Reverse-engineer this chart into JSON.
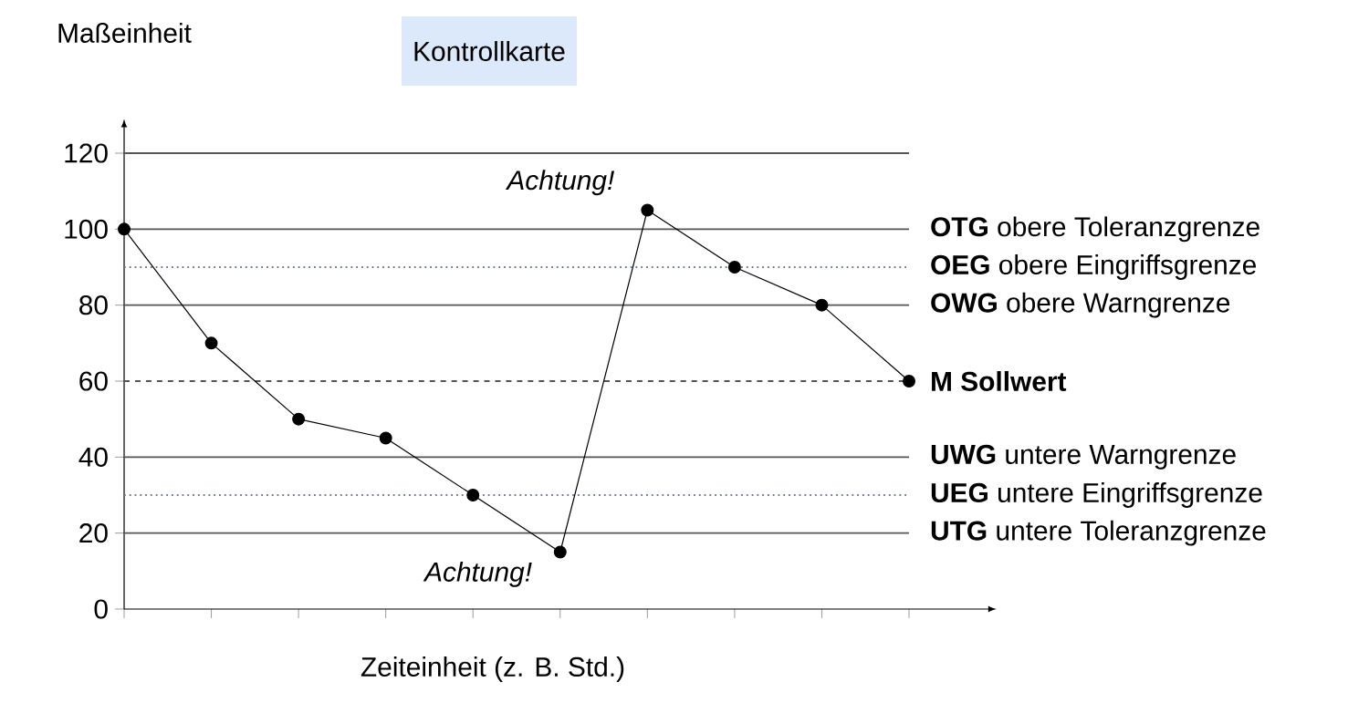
{
  "chart_data": {
    "type": "line",
    "title": "Kontrollkarte",
    "xlabel": "Zeiteinheit (z. B. Std.)",
    "ylabel": "Maßeinheit",
    "categories": [
      null,
      null,
      null,
      null,
      null,
      null,
      null,
      null,
      null,
      null
    ],
    "series": [
      {
        "color": "#000000",
        "values": [
          100,
          70,
          50,
          45,
          30,
          15,
          105,
          90,
          80,
          60
        ]
      }
    ],
    "ylim": [
      0,
      127
    ],
    "yticks": [
      0,
      20,
      40,
      60,
      80,
      100,
      120
    ],
    "grid": false,
    "marker": "circle",
    "line_style": "solid",
    "tick_labels": "y",
    "ref_lines": [
      {
        "axis": "y",
        "value": 120,
        "color": "#555555",
        "line_style": "solid"
      },
      {
        "axis": "y",
        "value": 100,
        "label": "**OTG** obere Toleranzgrenze",
        "color": "#555555",
        "line_style": "solid"
      },
      {
        "axis": "y",
        "value": 90,
        "label": "**OEG** obere Eingriffsgrenze",
        "color": "#6a7a9a",
        "line_style": "dotted"
      },
      {
        "axis": "y",
        "value": 80,
        "label": "**OWG** obere Warngrenze",
        "color": "#555555",
        "line_style": "solid"
      },
      {
        "axis": "y",
        "value": 60,
        "label": "**M   Sollwert**",
        "color": "#555555",
        "line_style": "dashed"
      },
      {
        "axis": "y",
        "value": 40,
        "label": "**UWG** untere Warngrenze",
        "color": "#555555",
        "line_style": "solid"
      },
      {
        "axis": "y",
        "value": 30,
        "label": "**UEG** untere Eingriffsgrenze",
        "color": "#6a7a9a",
        "line_style": "dotted"
      },
      {
        "axis": "y",
        "value": 20,
        "label": "**UTG** untere Toleranzgrenze",
        "color": "#555555",
        "line_style": "solid"
      }
    ],
    "annotations": [
      "Achtung!",
      "Achtung!"
    ]
  }
}
